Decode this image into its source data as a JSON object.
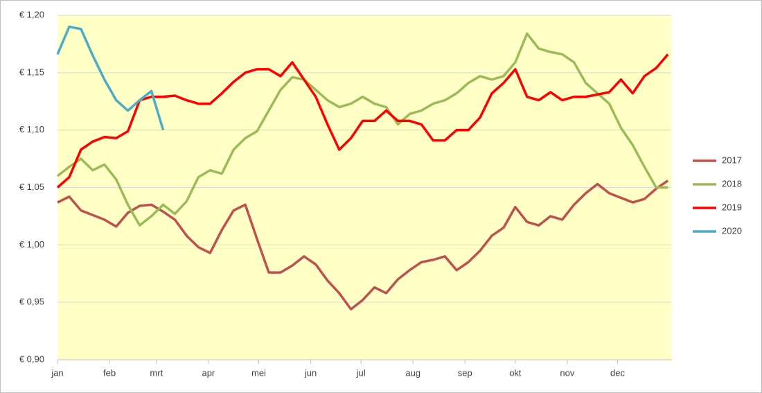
{
  "chart_data": {
    "type": "line",
    "x": [
      0,
      7,
      14,
      21,
      28,
      35,
      42,
      49,
      56,
      63,
      70,
      77,
      84,
      91,
      98,
      105,
      112,
      119,
      126,
      133,
      140,
      147,
      154,
      161,
      168,
      175,
      182,
      189,
      196,
      203,
      210,
      217,
      224,
      231,
      238,
      245,
      252,
      259,
      266,
      273,
      280,
      287,
      294,
      301,
      308,
      315,
      322,
      329,
      336,
      343,
      350,
      357,
      364
    ],
    "series": [
      {
        "name": "2017",
        "color": "#c0504d",
        "values": [
          1.037,
          1.042,
          1.03,
          1.026,
          1.022,
          1.016,
          1.028,
          1.034,
          1.035,
          1.029,
          1.022,
          1.008,
          0.998,
          0.993,
          1.013,
          1.03,
          1.035,
          1.005,
          0.976,
          0.976,
          0.982,
          0.99,
          0.983,
          0.969,
          0.958,
          0.944,
          0.952,
          0.963,
          0.958,
          0.97,
          0.978,
          0.985,
          0.987,
          0.99,
          0.978,
          0.985,
          0.995,
          1.008,
          1.015,
          1.033,
          1.02,
          1.017,
          1.025,
          1.022,
          1.035,
          1.045,
          1.053,
          1.045,
          1.041,
          1.037,
          1.04,
          1.049,
          1.056
        ]
      },
      {
        "name": "2018",
        "color": "#9bbb59",
        "values": [
          1.06,
          1.068,
          1.075,
          1.065,
          1.07,
          1.057,
          1.035,
          1.017,
          1.025,
          1.035,
          1.027,
          1.038,
          1.059,
          1.065,
          1.062,
          1.083,
          1.093,
          1.099,
          1.117,
          1.135,
          1.146,
          1.144,
          1.135,
          1.126,
          1.12,
          1.123,
          1.129,
          1.123,
          1.12,
          1.105,
          1.114,
          1.117,
          1.123,
          1.126,
          1.132,
          1.141,
          1.147,
          1.144,
          1.147,
          1.159,
          1.184,
          1.171,
          1.168,
          1.166,
          1.159,
          1.141,
          1.132,
          1.123,
          1.102,
          1.087,
          1.068,
          1.05,
          1.05
        ]
      },
      {
        "name": "2019",
        "color": "#ff0000",
        "values": [
          1.05,
          1.059,
          1.083,
          1.09,
          1.094,
          1.093,
          1.099,
          1.126,
          1.129,
          1.129,
          1.13,
          1.126,
          1.123,
          1.123,
          1.132,
          1.142,
          1.15,
          1.153,
          1.153,
          1.147,
          1.159,
          1.144,
          1.129,
          1.105,
          1.083,
          1.093,
          1.108,
          1.108,
          1.117,
          1.108,
          1.108,
          1.105,
          1.091,
          1.091,
          1.1,
          1.1,
          1.111,
          1.132,
          1.141,
          1.153,
          1.129,
          1.126,
          1.133,
          1.126,
          1.129,
          1.129,
          1.131,
          1.133,
          1.144,
          1.132,
          1.147,
          1.154,
          1.166
        ]
      },
      {
        "name": "2020",
        "color": "#4bacc6",
        "values": [
          1.166,
          1.19,
          1.188,
          1.165,
          1.144,
          1.126,
          1.117,
          1.126,
          1.134,
          1.1,
          null,
          null,
          null,
          null,
          null,
          null,
          null,
          null,
          null,
          null,
          null,
          null,
          null,
          null,
          null,
          null,
          null,
          null,
          null,
          null,
          null,
          null,
          null,
          null,
          null,
          null,
          null,
          null,
          null,
          null,
          null,
          null,
          null,
          null,
          null,
          null,
          null,
          null,
          null,
          null,
          null,
          null,
          null
        ]
      }
    ],
    "xlim": [
      0,
      366
    ],
    "xticks": [
      {
        "value": 0,
        "label": "jan"
      },
      {
        "value": 31,
        "label": "feb"
      },
      {
        "value": 59,
        "label": "mrt"
      },
      {
        "value": 90,
        "label": "apr"
      },
      {
        "value": 120,
        "label": "mei"
      },
      {
        "value": 151,
        "label": "jun"
      },
      {
        "value": 181,
        "label": "jul"
      },
      {
        "value": 212,
        "label": "aug"
      },
      {
        "value": 243,
        "label": "sep"
      },
      {
        "value": 273,
        "label": "okt"
      },
      {
        "value": 304,
        "label": "nov"
      },
      {
        "value": 334,
        "label": "dec"
      }
    ],
    "ylim": [
      0.9,
      1.2
    ],
    "yticks": [
      {
        "value": 0.9,
        "label": "€ 0,90"
      },
      {
        "value": 0.95,
        "label": "€ 0,95"
      },
      {
        "value": 1.0,
        "label": "€ 1,00"
      },
      {
        "value": 1.05,
        "label": "€ 1,05"
      },
      {
        "value": 1.1,
        "label": "€ 1,10"
      },
      {
        "value": 1.15,
        "label": "€ 1,15"
      },
      {
        "value": 1.2,
        "label": "€ 1,20"
      }
    ],
    "grid": true,
    "legend": "right"
  }
}
